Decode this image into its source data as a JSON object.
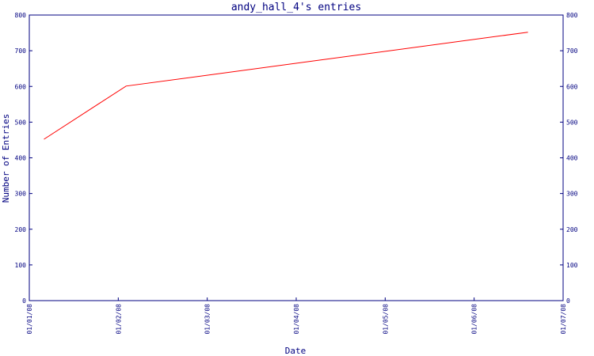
{
  "chart_data": {
    "type": "line",
    "title": "andy_hall_4's entries",
    "xlabel": "Date",
    "ylabel": "Number of Entries",
    "ylim": [
      0,
      800
    ],
    "y_ticks": [
      "0",
      "100",
      "200",
      "300",
      "400",
      "500",
      "600",
      "700",
      "800"
    ],
    "x_ticks": [
      "01/01/08",
      "01/02/08",
      "01/03/08",
      "01/04/08",
      "01/05/08",
      "01/06/08",
      "01/07/08"
    ],
    "xlim": [
      "2008-01-01",
      "2008-07-01"
    ],
    "grid": false,
    "series": [
      {
        "color": "#ff0000",
        "points": [
          {
            "x": "2008-01-06",
            "y": 452
          },
          {
            "x": "2008-02-03",
            "y": 601
          },
          {
            "x": "2008-06-19",
            "y": 752
          }
        ]
      }
    ]
  }
}
